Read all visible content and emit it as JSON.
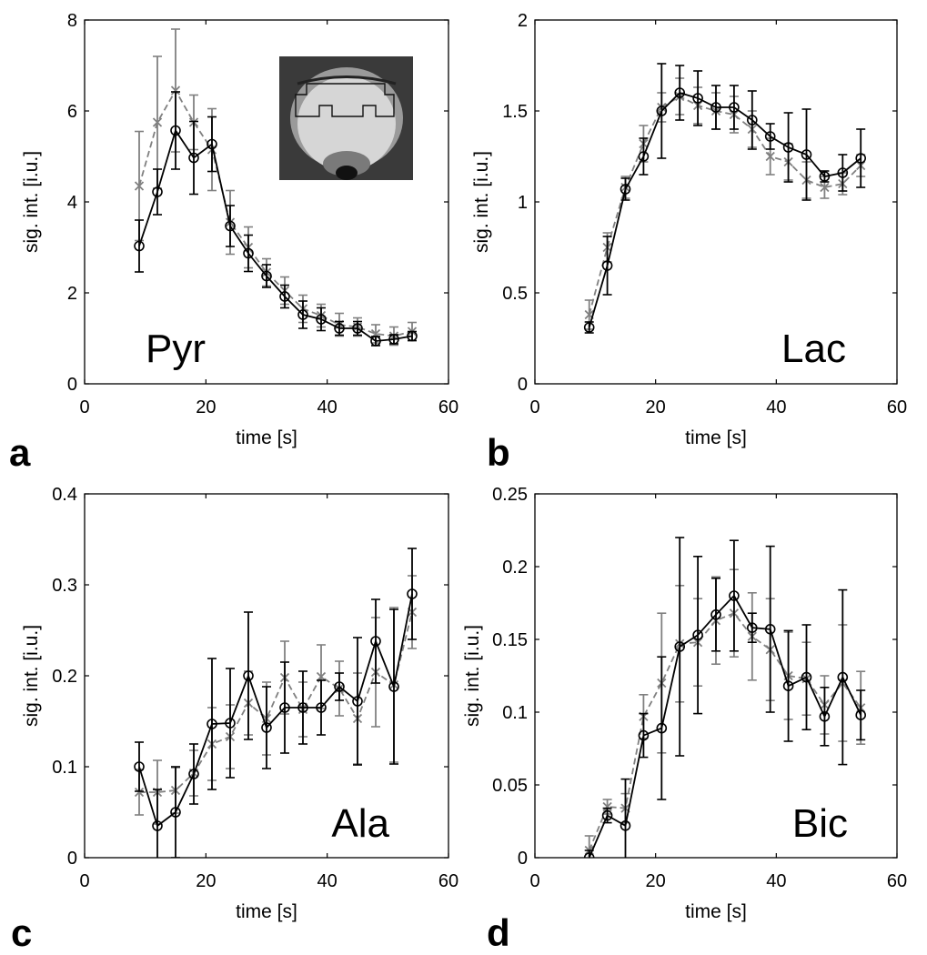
{
  "chart_data": [
    {
      "type": "line",
      "panel_letter": "a",
      "label": "Pyr",
      "xlabel": "time [s]",
      "ylabel": "sig. int. [i.u.]",
      "xlim": [
        0,
        60
      ],
      "ylim": [
        0,
        8
      ],
      "xticks": [
        0,
        20,
        40,
        60
      ],
      "xtick_labels": [
        "0",
        "20",
        "40",
        "60"
      ],
      "yticks": [
        0,
        2,
        4,
        6,
        8
      ],
      "ytick_labels": [
        "0",
        "2",
        "4",
        "6",
        "8"
      ],
      "has_inset_image": true,
      "x": [
        9,
        12,
        15,
        18,
        21,
        24,
        27,
        30,
        33,
        36,
        39,
        42,
        45,
        48,
        51,
        54
      ],
      "series": [
        {
          "name": "gray dashed (x markers)",
          "color": "#808080",
          "marker": "x",
          "dashed": true,
          "values": [
            4.35,
            5.75,
            6.45,
            5.75,
            5.15,
            3.55,
            3.0,
            2.45,
            2.05,
            1.65,
            1.5,
            1.3,
            1.25,
            1.1,
            1.05,
            1.15
          ],
          "err": [
            1.2,
            1.45,
            1.35,
            0.6,
            0.9,
            0.7,
            0.45,
            0.3,
            0.3,
            0.3,
            0.25,
            0.25,
            0.2,
            0.2,
            0.2,
            0.2
          ]
        },
        {
          "name": "black solid (o markers)",
          "color": "#000000",
          "marker": "o",
          "dashed": false,
          "values": [
            3.03,
            4.22,
            5.57,
            4.97,
            5.27,
            3.47,
            2.87,
            2.37,
            1.92,
            1.52,
            1.42,
            1.22,
            1.22,
            0.94,
            0.98,
            1.05
          ],
          "err": [
            0.57,
            0.5,
            0.85,
            0.8,
            0.6,
            0.45,
            0.4,
            0.25,
            0.25,
            0.3,
            0.25,
            0.15,
            0.15,
            0.1,
            0.1,
            0.1
          ]
        }
      ]
    },
    {
      "type": "line",
      "panel_letter": "b",
      "label": "Lac",
      "xlabel": "time [s]",
      "ylabel": "sig. int. [i.u.]",
      "xlim": [
        0,
        60
      ],
      "ylim": [
        0,
        2
      ],
      "xticks": [
        0,
        20,
        40,
        60
      ],
      "xtick_labels": [
        "0",
        "20",
        "40",
        "60"
      ],
      "yticks": [
        0,
        0.5,
        1,
        1.5,
        2
      ],
      "ytick_labels": [
        "0",
        "0.5",
        "1",
        "1.5",
        "2"
      ],
      "has_inset_image": false,
      "x": [
        9,
        12,
        15,
        18,
        21,
        24,
        27,
        30,
        33,
        36,
        39,
        42,
        45,
        48,
        51,
        54
      ],
      "series": [
        {
          "name": "gray dashed (x markers)",
          "color": "#808080",
          "marker": "x",
          "dashed": true,
          "values": [
            0.38,
            0.75,
            1.08,
            1.32,
            1.52,
            1.58,
            1.53,
            1.5,
            1.48,
            1.4,
            1.25,
            1.22,
            1.12,
            1.08,
            1.1,
            1.2
          ],
          "err": [
            0.08,
            0.08,
            0.06,
            0.1,
            0.08,
            0.1,
            0.1,
            0.1,
            0.1,
            0.1,
            0.1,
            0.1,
            0.1,
            0.06,
            0.06,
            0.06
          ]
        },
        {
          "name": "black solid (o markers)",
          "color": "#000000",
          "marker": "o",
          "dashed": false,
          "values": [
            0.31,
            0.65,
            1.07,
            1.25,
            1.5,
            1.6,
            1.57,
            1.52,
            1.52,
            1.45,
            1.36,
            1.3,
            1.26,
            1.14,
            1.16,
            1.24
          ],
          "err": [
            0.03,
            0.16,
            0.06,
            0.1,
            0.26,
            0.15,
            0.15,
            0.12,
            0.12,
            0.16,
            0.07,
            0.19,
            0.25,
            0.03,
            0.1,
            0.16
          ]
        }
      ]
    },
    {
      "type": "line",
      "panel_letter": "c",
      "label": "Ala",
      "xlabel": "time [s]",
      "ylabel": "sig. int. [i.u.]",
      "xlim": [
        0,
        60
      ],
      "ylim": [
        0,
        0.4
      ],
      "xticks": [
        0,
        20,
        40,
        60
      ],
      "xtick_labels": [
        "0",
        "20",
        "40",
        "60"
      ],
      "yticks": [
        0,
        0.1,
        0.2,
        0.3,
        0.4
      ],
      "ytick_labels": [
        "0",
        "0.1",
        "0.2",
        "0.3",
        "0.4"
      ],
      "has_inset_image": false,
      "x": [
        9,
        12,
        15,
        18,
        21,
        24,
        27,
        30,
        33,
        36,
        39,
        42,
        45,
        48,
        51,
        54
      ],
      "series": [
        {
          "name": "gray dashed (x markers)",
          "color": "#808080",
          "marker": "x",
          "dashed": true,
          "values": [
            0.072,
            0.072,
            0.074,
            0.093,
            0.125,
            0.133,
            0.17,
            0.153,
            0.198,
            0.163,
            0.199,
            0.186,
            0.153,
            0.204,
            0.19,
            0.27
          ],
          "err": [
            0.025,
            0.035,
            0.025,
            0.025,
            0.04,
            0.035,
            0.035,
            0.04,
            0.04,
            0.03,
            0.035,
            0.03,
            0.05,
            0.06,
            0.085,
            0.04
          ]
        },
        {
          "name": "black solid (o markers)",
          "color": "#000000",
          "marker": "o",
          "dashed": false,
          "values": [
            0.1,
            0.035,
            0.05,
            0.092,
            0.147,
            0.148,
            0.2,
            0.143,
            0.165,
            0.165,
            0.165,
            0.188,
            0.172,
            0.238,
            0.188,
            0.29
          ],
          "err": [
            0.027,
            0.04,
            0.05,
            0.033,
            0.072,
            0.06,
            0.07,
            0.045,
            0.05,
            0.04,
            0.03,
            0.015,
            0.07,
            0.046,
            0.085,
            0.05
          ]
        }
      ]
    },
    {
      "type": "line",
      "panel_letter": "d",
      "label": "Bic",
      "xlabel": "time [s]",
      "ylabel": "sig. int. [i.u.]",
      "xlim": [
        0,
        60
      ],
      "ylim": [
        0,
        0.25
      ],
      "xticks": [
        0,
        20,
        40,
        60
      ],
      "xtick_labels": [
        "0",
        "20",
        "40",
        "60"
      ],
      "yticks": [
        0,
        0.05,
        0.1,
        0.15,
        0.2,
        0.25
      ],
      "ytick_labels": [
        "0",
        "0.05",
        "0.1",
        "0.15",
        "0.2",
        "0.25"
      ],
      "has_inset_image": false,
      "x": [
        9,
        12,
        15,
        18,
        21,
        24,
        27,
        30,
        33,
        36,
        39,
        42,
        45,
        48,
        51,
        54
      ],
      "series": [
        {
          "name": "gray dashed (x markers)",
          "color": "#808080",
          "marker": "x",
          "dashed": true,
          "values": [
            0.005,
            0.035,
            0.034,
            0.097,
            0.12,
            0.147,
            0.148,
            0.163,
            0.168,
            0.152,
            0.143,
            0.125,
            0.123,
            0.105,
            0.12,
            0.103
          ],
          "err": [
            0.01,
            0.005,
            0.01,
            0.015,
            0.048,
            0.04,
            0.03,
            0.03,
            0.03,
            0.03,
            0.035,
            0.03,
            0.025,
            0.02,
            0.04,
            0.025
          ]
        },
        {
          "name": "black solid (o markers)",
          "color": "#000000",
          "marker": "o",
          "dashed": false,
          "values": [
            0,
            0.029,
            0.022,
            0.084,
            0.089,
            0.145,
            0.153,
            0.167,
            0.18,
            0.158,
            0.157,
            0.118,
            0.124,
            0.097,
            0.124,
            0.098
          ],
          "err": [
            0.005,
            0.005,
            0.032,
            0.015,
            0.049,
            0.075,
            0.054,
            0.025,
            0.038,
            0.01,
            0.057,
            0.038,
            0.036,
            0.02,
            0.06,
            0.017
          ]
        }
      ]
    }
  ]
}
